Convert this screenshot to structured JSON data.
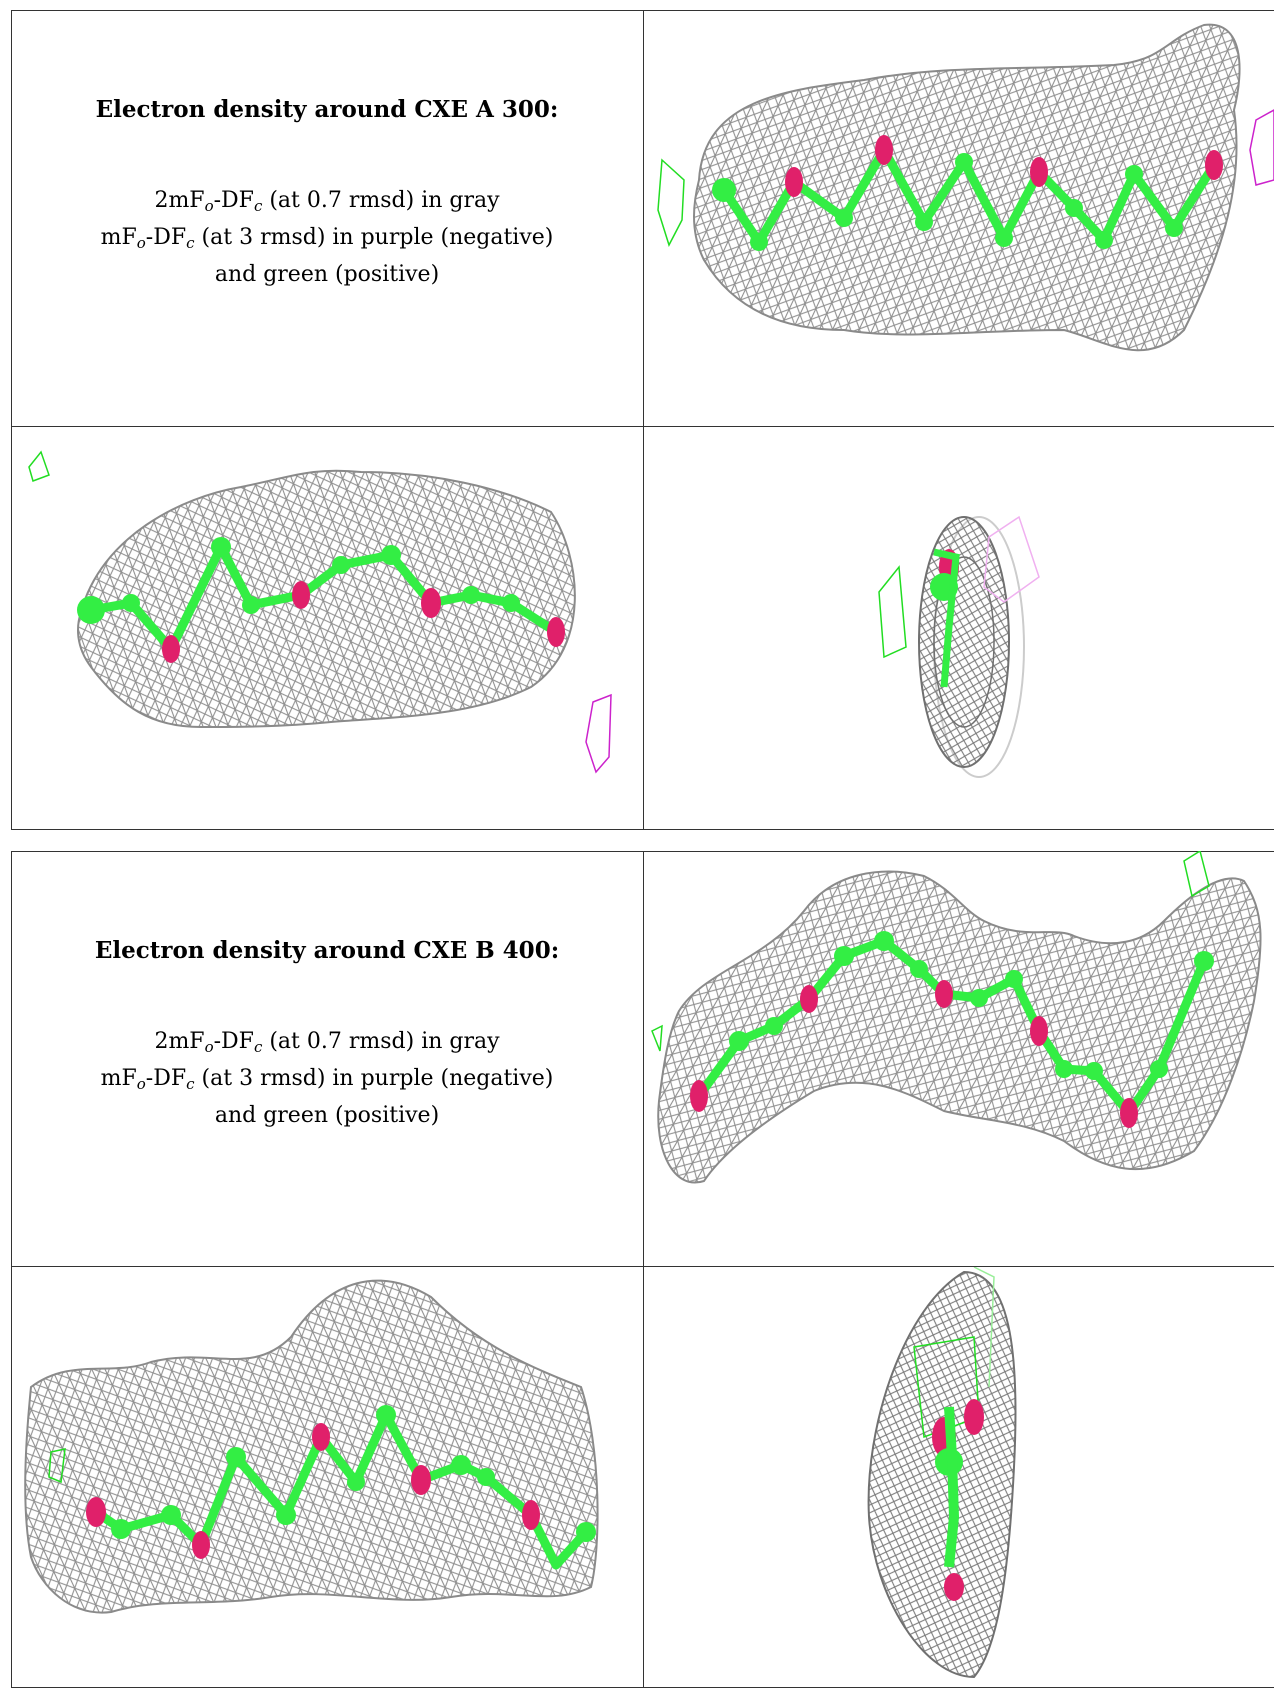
{
  "blocks": [
    {
      "title": "Electron density around CXE A 300:",
      "legend_lines": [
        {
          "prefix": "2mF",
          "s1": "o",
          "mid": "-DF",
          "s2": "c",
          "suffix": " (at 0.7 rmsd) in gray"
        },
        {
          "prefix": "mF",
          "s1": "o",
          "mid": "-DF",
          "s2": "c",
          "suffix": " (at 3 rmsd) in purple (negative)"
        },
        {
          "text": "and green (positive)"
        }
      ]
    },
    {
      "title": "Electron density around CXE B 400:",
      "legend_lines": [
        {
          "prefix": "2mF",
          "s1": "o",
          "mid": "-DF",
          "s2": "c",
          "suffix": " (at 0.7 rmsd) in gray"
        },
        {
          "prefix": "mF",
          "s1": "o",
          "mid": "-DF",
          "s2": "c",
          "suffix": " (at 3 rmsd) in purple (negative)"
        },
        {
          "text": "and green (positive)"
        }
      ]
    }
  ],
  "colors": {
    "mesh_gray": "#9a9a9a",
    "carbon_green": "#33ee44",
    "oxygen_pink": "#e0206a",
    "negative_purple": "#cc22cc",
    "positive_green": "#22dd22"
  }
}
